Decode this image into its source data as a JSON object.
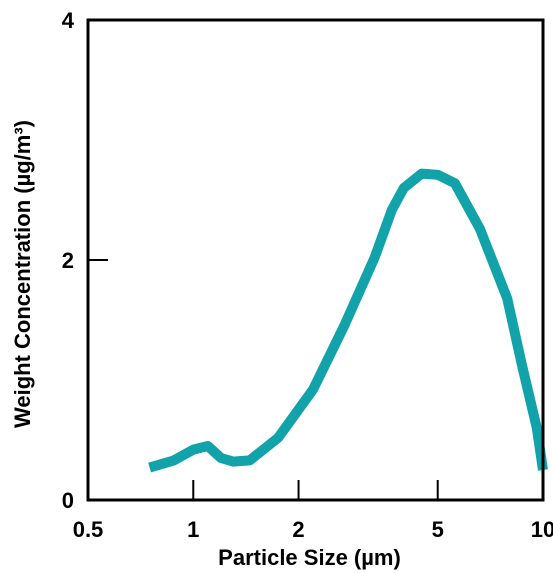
{
  "chart_data": {
    "type": "line",
    "title": "",
    "xlabel": "Particle Size (µm)",
    "ylabel": "Weight Concentration (µg/m³)",
    "x_scale": "log",
    "xlim": [
      0.5,
      10
    ],
    "ylim": [
      0,
      4
    ],
    "x_ticks": [
      {
        "value": 0.5,
        "label": "0.5"
      },
      {
        "value": 1,
        "label": "1"
      },
      {
        "value": 2,
        "label": "2"
      },
      {
        "value": 5,
        "label": "5"
      },
      {
        "value": 10,
        "label": "10"
      }
    ],
    "y_ticks": [
      {
        "value": 0,
        "label": "0"
      },
      {
        "value": 2,
        "label": "2"
      },
      {
        "value": 4,
        "label": "4"
      }
    ],
    "grid": false,
    "series": [
      {
        "name": "",
        "color": "#12a2aa",
        "x": [
          0.75,
          0.88,
          1.0,
          1.1,
          1.2,
          1.3,
          1.45,
          1.75,
          2.2,
          2.7,
          3.3,
          3.7,
          4.0,
          4.5,
          5.0,
          5.6,
          6.6,
          7.9,
          8.7,
          9.6,
          10.0
        ],
        "y": [
          0.27,
          0.33,
          0.42,
          0.45,
          0.35,
          0.32,
          0.33,
          0.52,
          0.92,
          1.45,
          2.02,
          2.42,
          2.6,
          2.72,
          2.71,
          2.64,
          2.26,
          1.68,
          1.13,
          0.6,
          0.25
        ]
      }
    ]
  }
}
